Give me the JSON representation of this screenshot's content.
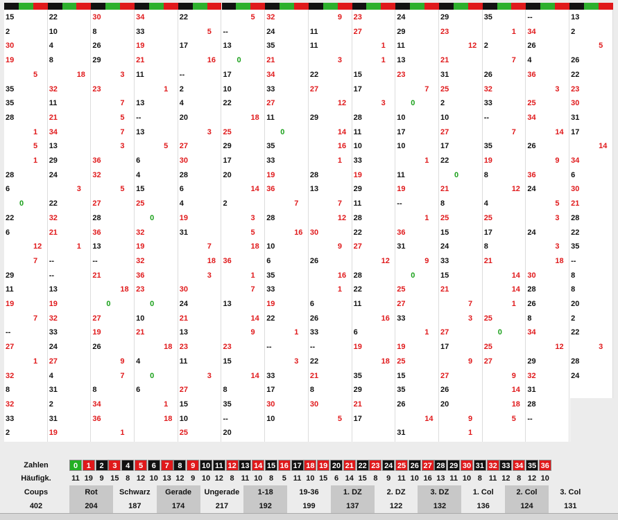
{
  "columns": [
    {
      "spins": [
        "15",
        "2",
        "30",
        "19",
        "5",
        "35",
        "35",
        "28",
        "1",
        "5",
        "1",
        "28",
        "6",
        "0",
        "22",
        "6",
        "12",
        "7",
        "29",
        "11",
        "19",
        "7",
        "--",
        "27",
        "1",
        "32",
        "8",
        "32",
        "33",
        "2"
      ]
    },
    {
      "spins": [
        "22",
        "10",
        "4",
        "8",
        "18",
        "32",
        "11",
        "21",
        "34",
        "13",
        "29",
        "24",
        "3",
        "22",
        "32",
        "21",
        "1",
        "--",
        "--",
        "13",
        "19",
        "32",
        "33",
        "24",
        "27",
        "4",
        "31",
        "2",
        "31",
        "19"
      ]
    },
    {
      "spins": [
        "30",
        "8",
        "26",
        "29",
        "3",
        "23",
        "7",
        "5",
        "7",
        "3",
        "36",
        "32",
        "5",
        "27",
        "28",
        "36",
        "13",
        "--",
        "21",
        "18",
        "0",
        "27",
        "19",
        "26",
        "9",
        "7",
        "8",
        "34",
        "36",
        "1"
      ]
    },
    {
      "spins": [
        "34",
        "33",
        "19",
        "21",
        "11",
        "1",
        "13",
        "--",
        "13",
        "5",
        "6",
        "4",
        "15",
        "25",
        "0",
        "32",
        "19",
        "32",
        "36",
        "23",
        "0",
        "10",
        "21",
        "18",
        "4",
        "0",
        "6",
        "1",
        "18"
      ]
    },
    {
      "spins": [
        "22",
        "5",
        "17",
        "16",
        "--",
        "2",
        "4",
        "20",
        "3",
        "27",
        "30",
        "28",
        "6",
        "4",
        "19",
        "31",
        "7",
        "18",
        "3",
        "30",
        "24",
        "21",
        "13",
        "23",
        "11",
        "3",
        "27",
        "15",
        "10",
        "25"
      ]
    },
    {
      "spins": [
        "5",
        "--",
        "13",
        "0",
        "17",
        "10",
        "22",
        "18",
        "25",
        "29",
        "17",
        "20",
        "14",
        "2",
        "3",
        "5",
        "18",
        "36",
        "1",
        "7",
        "13",
        "14",
        "9",
        "23",
        "15",
        "14",
        "8",
        "35",
        "--",
        "20"
      ]
    },
    {
      "spins": [
        "32",
        "24",
        "35",
        "21",
        "34",
        "33",
        "27",
        "11",
        "0",
        "35",
        "33",
        "19",
        "36",
        "7",
        "28",
        "16",
        "10",
        "6",
        "35",
        "33",
        "19",
        "22",
        "1",
        "--",
        "3",
        "33",
        "17",
        "30",
        "10"
      ]
    },
    {
      "spins": [
        "9",
        "11",
        "11",
        "3",
        "22",
        "27",
        "12",
        "29",
        "14",
        "16",
        "1",
        "28",
        "13",
        "7",
        "12",
        "30",
        "9",
        "26",
        "16",
        "1",
        "6",
        "26",
        "33",
        "--",
        "22",
        "21",
        "8",
        "30",
        "5"
      ]
    },
    {
      "spins": [
        "23",
        "27",
        "1",
        "1",
        "15",
        "17",
        "3",
        "28",
        "11",
        "10",
        "33",
        "19",
        "29",
        "11",
        "28",
        "22",
        "27",
        "12",
        "28",
        "22",
        "11",
        "16",
        "6",
        "19",
        "18",
        "35",
        "29",
        "21",
        "17"
      ]
    },
    {
      "spins": [
        "24",
        "29",
        "11",
        "13",
        "23",
        "7",
        "0",
        "10",
        "17",
        "10",
        "1",
        "11",
        "19",
        "--",
        "1",
        "36",
        "31",
        "9",
        "0",
        "25",
        "27",
        "33",
        "1",
        "19",
        "25",
        "15",
        "35",
        "26",
        "14",
        "31"
      ]
    },
    {
      "spins": [
        "29",
        "23",
        "12",
        "21",
        "31",
        "25",
        "2",
        "10",
        "27",
        "17",
        "22",
        "0",
        "21",
        "8",
        "25",
        "15",
        "24",
        "33",
        "15",
        "21",
        "7",
        "3",
        "27",
        "17",
        "9",
        "27",
        "26",
        "20",
        "9",
        "1"
      ]
    },
    {
      "spins": [
        "35",
        "1",
        "2",
        "7",
        "26",
        "32",
        "33",
        "--",
        "7",
        "35",
        "19",
        "8",
        "12",
        "4",
        "25",
        "17",
        "8",
        "21",
        "14",
        "14",
        "1",
        "25",
        "0",
        "25",
        "27",
        "9",
        "14",
        "18",
        "5"
      ]
    },
    {
      "spins": [
        "--",
        "34",
        "26",
        "4",
        "36",
        "3",
        "25",
        "34",
        "14",
        "26",
        "9",
        "36",
        "24",
        "5",
        "3",
        "24",
        "3",
        "18",
        "30",
        "28",
        "26",
        "8",
        "34",
        "12",
        "29",
        "32",
        "31",
        "28",
        "--"
      ]
    },
    {
      "spins": [
        "13",
        "2",
        "5",
        "26",
        "22",
        "23",
        "30",
        "31",
        "17",
        "14",
        "34",
        "6",
        "30",
        "21",
        "28",
        "22",
        "35",
        "--",
        "8",
        "8",
        "20",
        "2",
        "22",
        "3",
        "28",
        "24"
      ]
    }
  ],
  "stats": {
    "zahlen_label": "Zahlen",
    "haufigk_label": "Häufigk.",
    "coups_label": "Coups",
    "coups_value": "402",
    "numbers": [
      "0",
      "1",
      "2",
      "3",
      "4",
      "5",
      "6",
      "7",
      "8",
      "9",
      "10",
      "11",
      "12",
      "13",
      "14",
      "15",
      "16",
      "17",
      "18",
      "19",
      "20",
      "21",
      "22",
      "23",
      "24",
      "25",
      "26",
      "27",
      "28",
      "29",
      "30",
      "31",
      "32",
      "33",
      "34",
      "35",
      "36"
    ],
    "frequencies": [
      "11",
      "19",
      "9",
      "15",
      "8",
      "12",
      "10",
      "13",
      "12",
      "9",
      "10",
      "12",
      "8",
      "11",
      "10",
      "8",
      "5",
      "11",
      "10",
      "15",
      "6",
      "14",
      "15",
      "8",
      "9",
      "11",
      "10",
      "16",
      "13",
      "11",
      "10",
      "8",
      "11",
      "12",
      "8",
      "12",
      "10"
    ],
    "groups": [
      {
        "label": "Rot",
        "value": "204"
      },
      {
        "label": "Schwarz",
        "value": "187"
      },
      {
        "label": "Gerade",
        "value": "174"
      },
      {
        "label": "Ungerade",
        "value": "217"
      },
      {
        "label": "1-18",
        "value": "192"
      },
      {
        "label": "19-36",
        "value": "199"
      },
      {
        "label": "1. DZ",
        "value": "137"
      },
      {
        "label": "2. DZ",
        "value": "122"
      },
      {
        "label": "3. DZ",
        "value": "132"
      },
      {
        "label": "1. Col",
        "value": "136"
      },
      {
        "label": "2. Col",
        "value": "124"
      },
      {
        "label": "3. Col",
        "value": "131"
      }
    ]
  },
  "colors": {
    "red": "#e0191b",
    "black": "#111111",
    "green": "#1aa01a"
  }
}
